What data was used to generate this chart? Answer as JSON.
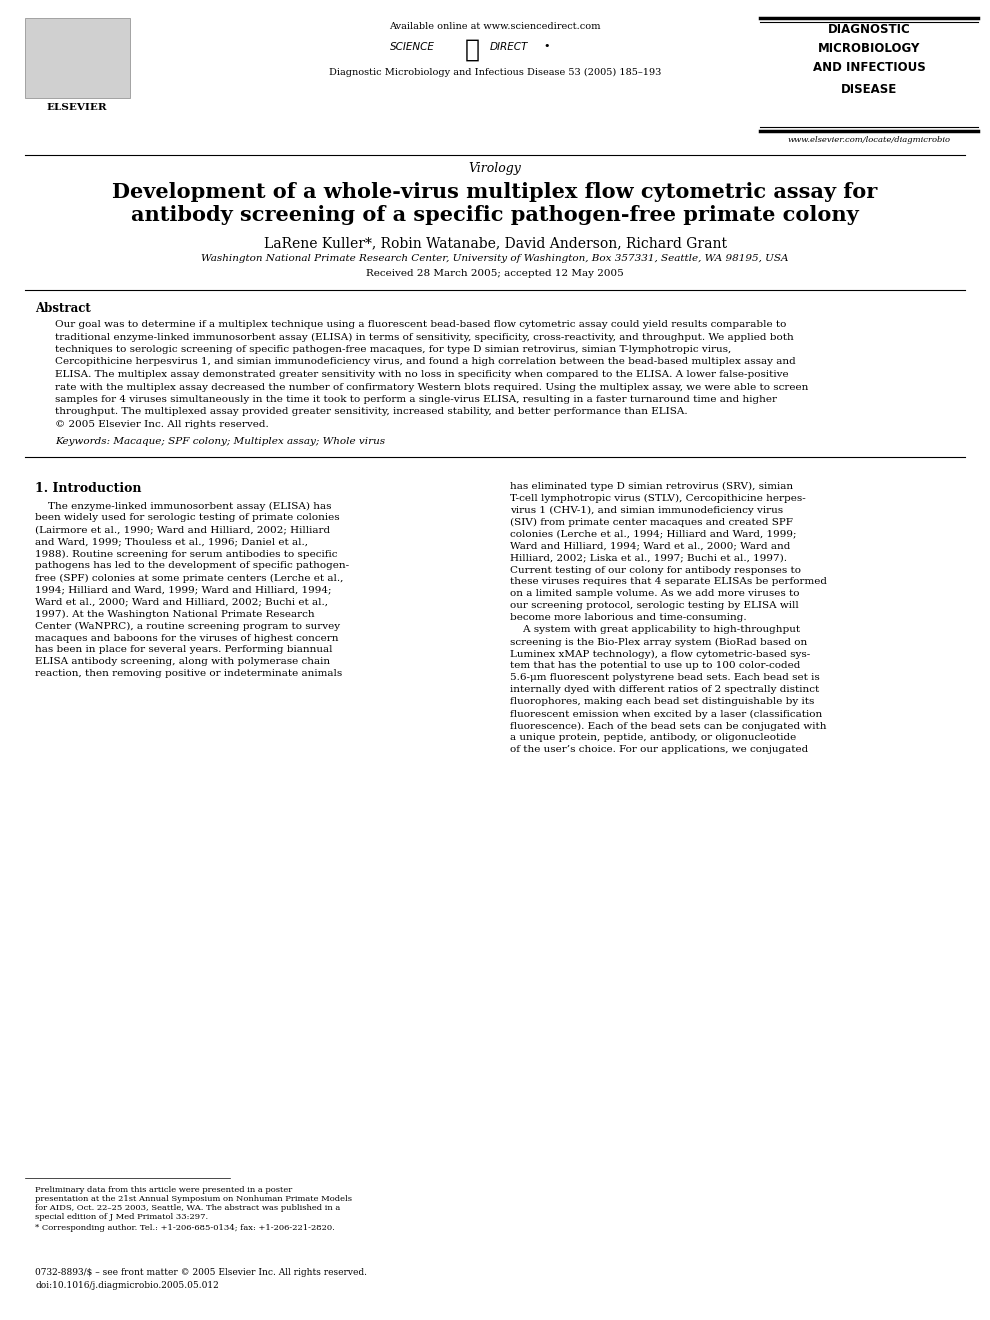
{
  "bg_color": "#ffffff",
  "header_available_text": "Available online at www.sciencedirect.com",
  "journal_name": "Diagnostic Microbiology and Infectious Disease 53 (2005) 185–193",
  "journal_box_lines": [
    "DIAGNOSTIC",
    "MICROBIOLOGY",
    "AND INFECTIOUS",
    "DISEASE"
  ],
  "website": "www.elsevier.com/locate/diagmicrobio",
  "section": "Virology",
  "title_line1": "Development of a whole-virus multiplex flow cytometric assay for",
  "title_line2": "antibody screening of a specific pathogen-free primate colony",
  "authors": "LaRene Kuller*, Robin Watanabe, David Anderson, Richard Grant",
  "affiliation": "Washington National Primate Research Center, University of Washington, Box 357331, Seattle, WA 98195, USA",
  "received": "Received 28 March 2005; accepted 12 May 2005",
  "abstract_title": "Abstract",
  "abstract_body_lines": [
    "Our goal was to determine if a multiplex technique using a fluorescent bead-based flow cytometric assay could yield results comparable to",
    "traditional enzyme-linked immunosorbent assay (ELISA) in terms of sensitivity, specificity, cross-reactivity, and throughput. We applied both",
    "techniques to serologic screening of specific pathogen-free macaques, for type D simian retrovirus, simian T-lymphotropic virus,",
    "Cercopithicine herpesvirus 1, and simian immunodeficiency virus, and found a high correlation between the bead-based multiplex assay and",
    "ELISA. The multiplex assay demonstrated greater sensitivity with no loss in specificity when compared to the ELISA. A lower false-positive",
    "rate with the multiplex assay decreased the number of confirmatory Western blots required. Using the multiplex assay, we were able to screen",
    "samples for 4 viruses simultaneously in the time it took to perform a single-virus ELISA, resulting in a faster turnaround time and higher",
    "throughput. The multiplexed assay provided greater sensitivity, increased stability, and better performance than ELISA.",
    "© 2005 Elsevier Inc. All rights reserved."
  ],
  "keywords": "Keywords: Macaque; SPF colony; Multiplex assay; Whole virus",
  "section1_title": "1. Introduction",
  "col1_lines": [
    "    The enzyme-linked immunosorbent assay (ELISA) has",
    "been widely used for serologic testing of primate colonies",
    "(Lairmore et al., 1990; Ward and Hilliard, 2002; Hilliard",
    "and Ward, 1999; Thouless et al., 1996; Daniel et al.,",
    "1988). Routine screening for serum antibodies to specific",
    "pathogens has led to the development of specific pathogen-",
    "free (SPF) colonies at some primate centers (Lerche et al.,",
    "1994; Hilliard and Ward, 1999; Ward and Hilliard, 1994;",
    "Ward et al., 2000; Ward and Hilliard, 2002; Buchi et al.,",
    "1997). At the Washington National Primate Research",
    "Center (WaNPRC), a routine screening program to survey",
    "macaques and baboons for the viruses of highest concern",
    "has been in place for several years. Performing biannual",
    "ELISA antibody screening, along with polymerase chain",
    "reaction, then removing positive or indeterminate animals"
  ],
  "col2_lines": [
    "has eliminated type D simian retrovirus (SRV), simian",
    "T-cell lymphotropic virus (STLV), Cercopithicine herpes-",
    "virus 1 (CHV-1), and simian immunodeficiency virus",
    "(SIV) from primate center macaques and created SPF",
    "colonies (Lerche et al., 1994; Hilliard and Ward, 1999;",
    "Ward and Hilliard, 1994; Ward et al., 2000; Ward and",
    "Hilliard, 2002; Liska et al., 1997; Buchi et al., 1997).",
    "Current testing of our colony for antibody responses to",
    "these viruses requires that 4 separate ELISAs be performed",
    "on a limited sample volume. As we add more viruses to",
    "our screening protocol, serologic testing by ELISA will",
    "become more laborious and time-consuming.",
    "    A system with great applicability to high-throughput",
    "screening is the Bio-Plex array system (BioRad based on",
    "Luminex xMAP technology), a flow cytometric-based sys-",
    "tem that has the potential to use up to 100 color-coded",
    "5.6-μm fluorescent polystyrene bead sets. Each bead set is",
    "internally dyed with different ratios of 2 spectrally distinct",
    "fluorophores, making each bead set distinguishable by its",
    "fluorescent emission when excited by a laser (classification",
    "fluorescence). Each of the bead sets can be conjugated with",
    "a unique protein, peptide, antibody, or oligonucleotide",
    "of the user’s choice. For our applications, we conjugated"
  ],
  "footnote1_lines": [
    "Preliminary data from this article were presented in a poster",
    "presentation at the 21st Annual Symposium on Nonhuman Primate Models",
    "for AIDS, Oct. 22–25 2003, Seattle, WA. The abstract was published in a",
    "special edition of J Med Primatol 33:297."
  ],
  "footnote2": "* Corresponding author. Tel.: +1-206-685-0134; fax: +1-206-221-2820.",
  "issn_line": "0732-8893/$ – see front matter © 2005 Elsevier Inc. All rights reserved.",
  "doi_line": "doi:10.1016/j.diagmicrobio.2005.05.012"
}
